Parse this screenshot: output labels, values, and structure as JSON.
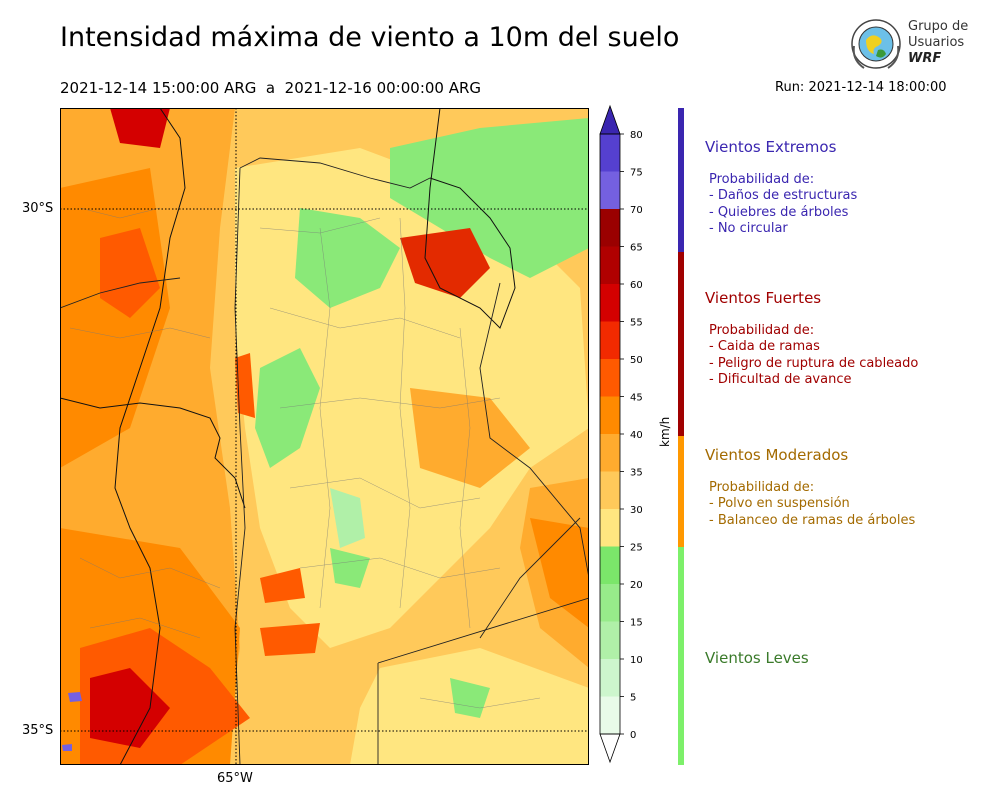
{
  "header": {
    "title": "Intensidad máxima de viento a 10m del suelo",
    "period": "2021-12-14 15:00:00 ARG  a  2021-12-16 00:00:00 ARG",
    "run": "Run: 2021-12-14 18:00:00"
  },
  "logo": {
    "line1": "Grupo de",
    "line2": "Usuarios",
    "line3": "WRF"
  },
  "map": {
    "lat_labels": [
      "30°S",
      "35°S"
    ],
    "lon_labels": [
      "65°W"
    ]
  },
  "colorbar": {
    "unit": "km/h",
    "ticks": [
      "0",
      "5",
      "10",
      "15",
      "20",
      "25",
      "30",
      "35",
      "40",
      "45",
      "50",
      "55",
      "60",
      "65",
      "70",
      "75",
      "80"
    ],
    "colors": [
      "#e8fbe8",
      "#cdf6cd",
      "#b0f0a8",
      "#97eb8a",
      "#7be66a",
      "#ffe680",
      "#ffc95a",
      "#ffab2e",
      "#ff8a00",
      "#ff5a00",
      "#f22a00",
      "#d40000",
      "#b00000",
      "#9a0000",
      "#7460e0",
      "#5540d0",
      "#3a26b0"
    ]
  },
  "categories": [
    {
      "title": "Vientos Extremos",
      "color": "#3a26b0",
      "text_color": "#3a26b0",
      "lines": [
        "Probabilidad de:",
        "- Daños de estructuras",
        "- Quiebres de árboles",
        "- No circular"
      ]
    },
    {
      "title": "Vientos Fuertes",
      "color": "#a00000",
      "text_color": "#a00000",
      "lines": [
        "Probabilidad de:",
        "- Caida de ramas",
        "- Peligro de ruptura de cableado",
        "- Dificultad de avance"
      ]
    },
    {
      "title": "Vientos Moderados",
      "color": "#ff9800",
      "text_color": "#a36a00",
      "lines": [
        "Probabilidad de:",
        "- Polvo en suspensión",
        "- Balanceo de ramas de árboles"
      ]
    },
    {
      "title": "Vientos Leves",
      "color": "#7df06a",
      "text_color": "#3a7a2a",
      "lines": []
    }
  ]
}
